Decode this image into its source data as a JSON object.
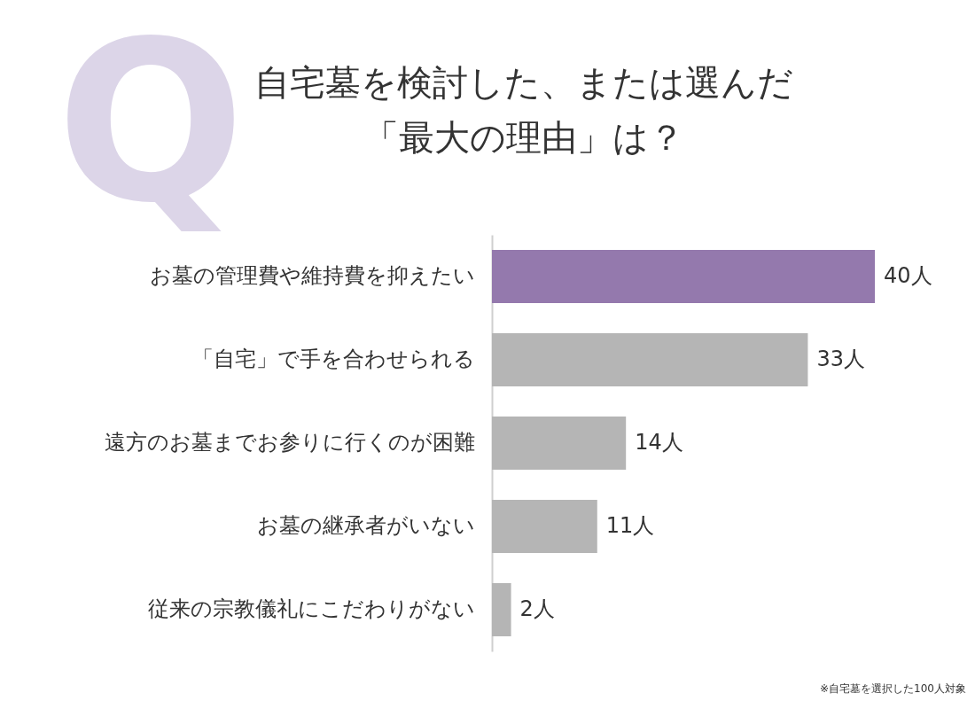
{
  "chart_data": {
    "type": "bar",
    "orientation": "horizontal",
    "title": "自宅墓を検討した、または選んだ「最大の理由」は？",
    "categories": [
      "お墓の管理費や維持費を抑えたい",
      "「自宅」で手を合わせられる",
      "遠方のお墓までお参りに行くのが困難",
      "お墓の継承者がいない",
      "従来の宗教儀礼にこだわりがない"
    ],
    "values": [
      40,
      33,
      14,
      11,
      2
    ],
    "colors": [
      "#9479ad",
      "#b5b5b5",
      "#b5b5b5",
      "#b5b5b5",
      "#b5b5b5"
    ],
    "value_labels": [
      "40人",
      "33人",
      "14人",
      "11人",
      "2人"
    ],
    "annotations": [
      "Q",
      "※自宅墓を選択した100人対象"
    ]
  }
}
